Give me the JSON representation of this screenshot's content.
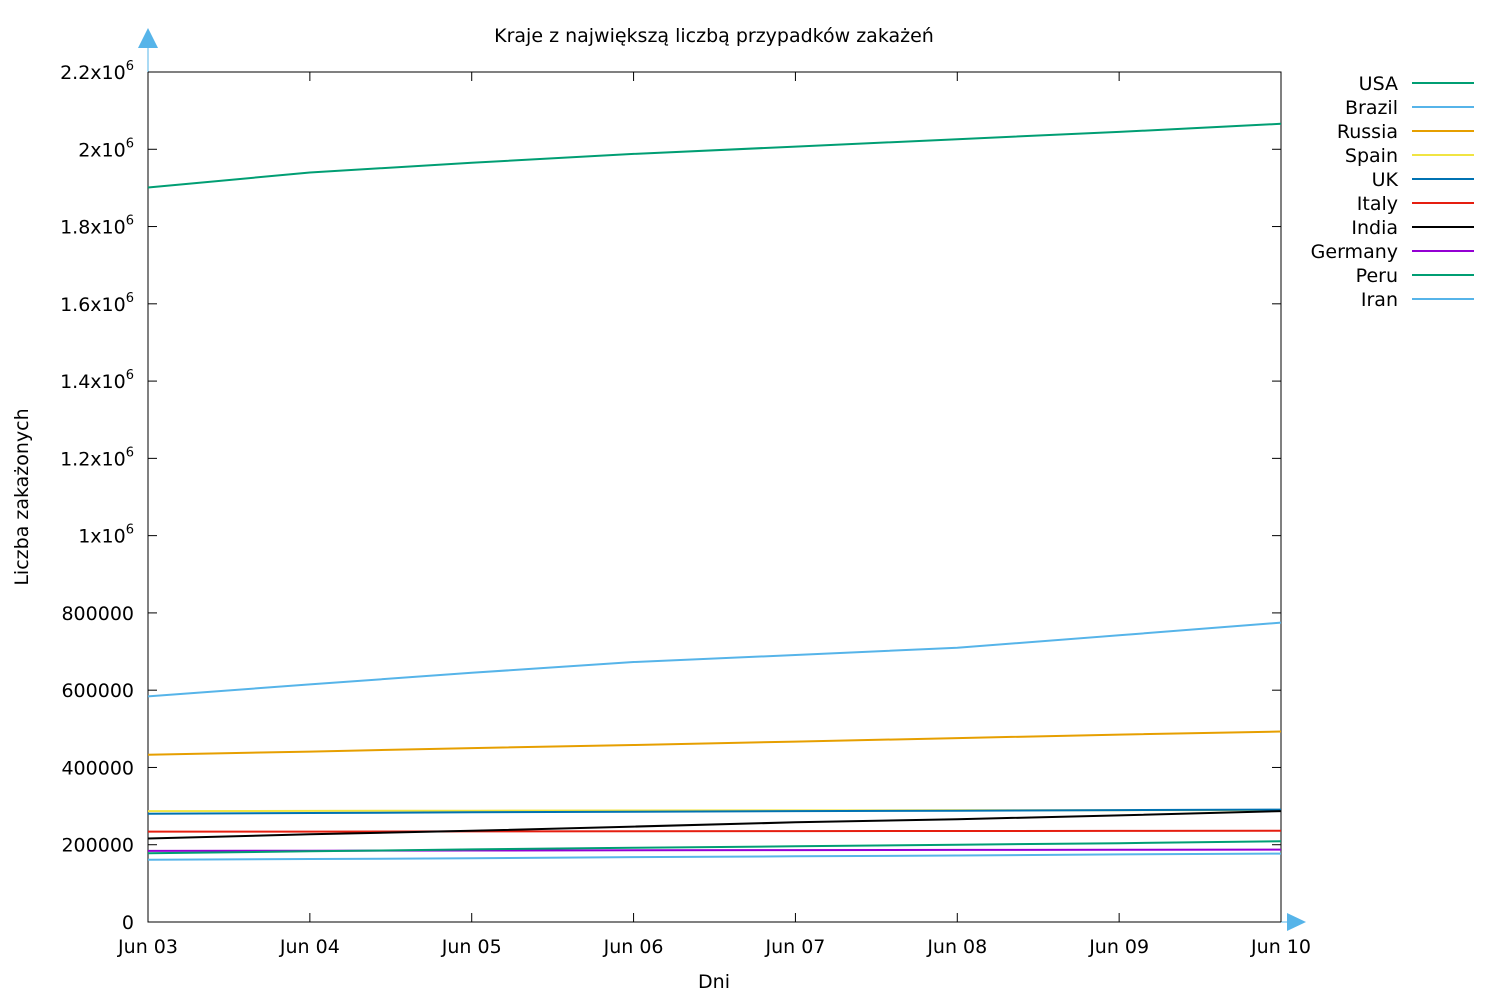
{
  "chart_data": {
    "type": "line",
    "title": "Kraje z największą liczbą przypadków zakażeń",
    "xlabel": "Dni",
    "ylabel": "Liczba zakażonych",
    "categories": [
      "Jun 03",
      "Jun 04",
      "Jun 05",
      "Jun 06",
      "Jun 07",
      "Jun 08",
      "Jun 09",
      "Jun 10"
    ],
    "ylim": [
      0,
      2200000
    ],
    "y_ticks": [
      {
        "value": 0,
        "label": "0",
        "exp": ""
      },
      {
        "value": 200000,
        "label": "200000",
        "exp": ""
      },
      {
        "value": 400000,
        "label": "400000",
        "exp": ""
      },
      {
        "value": 600000,
        "label": "600000",
        "exp": ""
      },
      {
        "value": 800000,
        "label": "800000",
        "exp": ""
      },
      {
        "value": 1000000,
        "label": "1x10",
        "exp": "6"
      },
      {
        "value": 1200000,
        "label": "1.2x10",
        "exp": "6"
      },
      {
        "value": 1400000,
        "label": "1.4x10",
        "exp": "6"
      },
      {
        "value": 1600000,
        "label": "1.6x10",
        "exp": "6"
      },
      {
        "value": 1800000,
        "label": "1.8x10",
        "exp": "6"
      },
      {
        "value": 2000000,
        "label": "2x10",
        "exp": "6"
      },
      {
        "value": 2200000,
        "label": "2.2x10",
        "exp": "6"
      }
    ],
    "grid": false,
    "legend_position": "top-right, outside",
    "axis_arrow_color": "#56b4e9",
    "series": [
      {
        "name": "USA",
        "color": "#009e73",
        "values": [
          1901000,
          1940000,
          1965000,
          1988000,
          2007000,
          2026000,
          2045000,
          2066000
        ]
      },
      {
        "name": "Brazil",
        "color": "#56b4e9",
        "values": [
          584000,
          615000,
          645000,
          673000,
          691000,
          710000,
          742000,
          775000
        ]
      },
      {
        "name": "Russia",
        "color": "#e69f00",
        "values": [
          433000,
          441000,
          450000,
          458000,
          467000,
          476000,
          485000,
          493000
        ]
      },
      {
        "name": "Spain",
        "color": "#f0e442",
        "values": [
          287000,
          287500,
          288000,
          288500,
          288800,
          289000,
          289300,
          289500
        ]
      },
      {
        "name": "UK",
        "color": "#0072b2",
        "values": [
          280000,
          282000,
          284000,
          285500,
          287000,
          288000,
          289500,
          291000
        ]
      },
      {
        "name": "Italy",
        "color": "#e51e10",
        "values": [
          234000,
          234000,
          234500,
          235000,
          235300,
          235500,
          235800,
          236000
        ]
      },
      {
        "name": "India",
        "color": "#000000",
        "values": [
          216000,
          227000,
          236000,
          247000,
          258000,
          266000,
          276000,
          287000
        ]
      },
      {
        "name": "Germany",
        "color": "#9400d3",
        "values": [
          184000,
          184500,
          185000,
          185500,
          186000,
          186500,
          187000,
          187500
        ]
      },
      {
        "name": "Peru",
        "color": "#009e73",
        "values": [
          178000,
          183000,
          188000,
          192000,
          196000,
          200000,
          204000,
          209000
        ]
      },
      {
        "name": "Iran",
        "color": "#56b4e9",
        "values": [
          161000,
          163000,
          165000,
          168000,
          170000,
          172000,
          175000,
          177000
        ]
      }
    ]
  }
}
